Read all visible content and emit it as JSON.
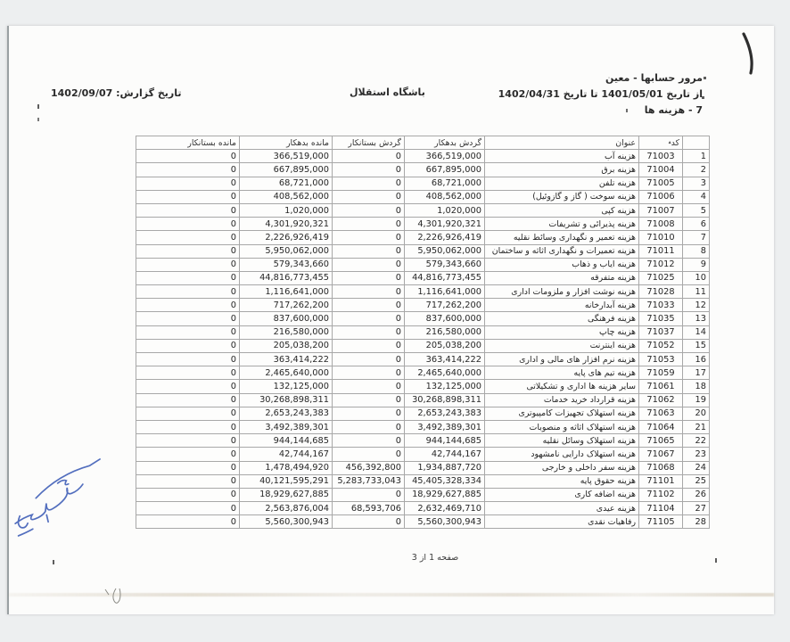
{
  "page": {
    "report_title": "مرور حسابها - معین",
    "date_range": "از تاریخ 1401/05/01 تا تاریخ 1402/04/31",
    "group_title": "7 - هزینه ها",
    "org_name": "باشگاه استقلال",
    "report_date": "تاریخ گزارش: 1402/09/07",
    "footer": "صفحه 1 از 3"
  },
  "table": {
    "headers": [
      "",
      "کد",
      "عنوان",
      "گردش بدهکار",
      "گردش بستانکار",
      "مانده بدهکار",
      "مانده بستانکار"
    ],
    "cell_keys": [
      "n",
      "code",
      "title",
      "dt",
      "ct",
      "db",
      "cb"
    ],
    "sort_icon": "▴",
    "rows": [
      {
        "n": "1",
        "code": "71003",
        "title": "هزینه آب",
        "dt": "366,519,000",
        "ct": "0",
        "db": "366,519,000",
        "cb": "0"
      },
      {
        "n": "2",
        "code": "71004",
        "title": "هزینه برق",
        "dt": "667,895,000",
        "ct": "0",
        "db": "667,895,000",
        "cb": "0"
      },
      {
        "n": "3",
        "code": "71005",
        "title": "هزینه تلفن",
        "dt": "68,721,000",
        "ct": "0",
        "db": "68,721,000",
        "cb": "0"
      },
      {
        "n": "4",
        "code": "71006",
        "title": "هزینه سوخت ( گاز و گازوئیل)",
        "dt": "408,562,000",
        "ct": "0",
        "db": "408,562,000",
        "cb": "0"
      },
      {
        "n": "5",
        "code": "71007",
        "title": "هزینه کپی",
        "dt": "1,020,000",
        "ct": "0",
        "db": "1,020,000",
        "cb": "0"
      },
      {
        "n": "6",
        "code": "71008",
        "title": "هزینه پذیرائی و تشریفات",
        "dt": "4,301,920,321",
        "ct": "0",
        "db": "4,301,920,321",
        "cb": "0"
      },
      {
        "n": "7",
        "code": "71010",
        "title": "هزینه تعمیر و نگهداری وسائط نقلیه",
        "dt": "2,226,926,419",
        "ct": "0",
        "db": "2,226,926,419",
        "cb": "0"
      },
      {
        "n": "8",
        "code": "71011",
        "title": "هزینه تعمیرات و نگهداری اثاثه و ساختمان",
        "dt": "5,950,062,000",
        "ct": "0",
        "db": "5,950,062,000",
        "cb": "0"
      },
      {
        "n": "9",
        "code": "71012",
        "title": "هزینه ایاب و ذهاب",
        "dt": "579,343,660",
        "ct": "0",
        "db": "579,343,660",
        "cb": "0"
      },
      {
        "n": "10",
        "code": "71025",
        "title": "هزینه متفرقه",
        "dt": "44,816,773,455",
        "ct": "0",
        "db": "44,816,773,455",
        "cb": "0"
      },
      {
        "n": "11",
        "code": "71028",
        "title": "هزینه نوشت افزار و ملزومات اداری",
        "dt": "1,116,641,000",
        "ct": "0",
        "db": "1,116,641,000",
        "cb": "0"
      },
      {
        "n": "12",
        "code": "71033",
        "title": "هزینه آبدارخانه",
        "dt": "717,262,200",
        "ct": "0",
        "db": "717,262,200",
        "cb": "0"
      },
      {
        "n": "13",
        "code": "71035",
        "title": "هزینه فرهنگی",
        "dt": "837,600,000",
        "ct": "0",
        "db": "837,600,000",
        "cb": "0"
      },
      {
        "n": "14",
        "code": "71037",
        "title": "هزینه چاپ",
        "dt": "216,580,000",
        "ct": "0",
        "db": "216,580,000",
        "cb": "0"
      },
      {
        "n": "15",
        "code": "71052",
        "title": "هزینه اینترنت",
        "dt": "205,038,200",
        "ct": "0",
        "db": "205,038,200",
        "cb": "0"
      },
      {
        "n": "16",
        "code": "71053",
        "title": "هزینه نرم افزار های مالی و اداری",
        "dt": "363,414,222",
        "ct": "0",
        "db": "363,414,222",
        "cb": "0"
      },
      {
        "n": "17",
        "code": "71059",
        "title": "هزینه تیم های پایه",
        "dt": "2,465,640,000",
        "ct": "0",
        "db": "2,465,640,000",
        "cb": "0"
      },
      {
        "n": "18",
        "code": "71061",
        "title": "سایر هزینه ها اداری و تشکیلاتی",
        "dt": "132,125,000",
        "ct": "0",
        "db": "132,125,000",
        "cb": "0"
      },
      {
        "n": "19",
        "code": "71062",
        "title": "هزینه قرارداد خرید خدمات",
        "dt": "30,268,898,311",
        "ct": "0",
        "db": "30,268,898,311",
        "cb": "0"
      },
      {
        "n": "20",
        "code": "71063",
        "title": "هزینه استهلاک تجهیزات کامپیوتری",
        "dt": "2,653,243,383",
        "ct": "0",
        "db": "2,653,243,383",
        "cb": "0"
      },
      {
        "n": "21",
        "code": "71064",
        "title": "هزینه استهلاک اثاثه و منصوبات",
        "dt": "3,492,389,301",
        "ct": "0",
        "db": "3,492,389,301",
        "cb": "0"
      },
      {
        "n": "22",
        "code": "71065",
        "title": "هزینه استهلاک وسائل نقلیه",
        "dt": "944,144,685",
        "ct": "0",
        "db": "944,144,685",
        "cb": "0"
      },
      {
        "n": "23",
        "code": "71067",
        "title": "هزینه استهلاک دارایی نامشهود",
        "dt": "42,744,167",
        "ct": "0",
        "db": "42,744,167",
        "cb": "0"
      },
      {
        "n": "24",
        "code": "71068",
        "title": "هزینه سفر داخلی و خارجی",
        "dt": "1,934,887,720",
        "ct": "456,392,800",
        "db": "1,478,494,920",
        "cb": "0"
      },
      {
        "n": "25",
        "code": "71101",
        "title": "هزینه حقوق پایه",
        "dt": "45,405,328,334",
        "ct": "5,283,733,043",
        "db": "40,121,595,291",
        "cb": "0"
      },
      {
        "n": "26",
        "code": "71102",
        "title": "هزینه اضافه کاری",
        "dt": "18,929,627,885",
        "ct": "0",
        "db": "18,929,627,885",
        "cb": "0"
      },
      {
        "n": "27",
        "code": "71104",
        "title": "هزینه عیدی",
        "dt": "2,632,469,710",
        "ct": "68,593,706",
        "db": "2,563,876,004",
        "cb": "0"
      },
      {
        "n": "28",
        "code": "71105",
        "title": "رفاهیات نقدی",
        "dt": "5,560,300,943",
        "ct": "0",
        "db": "5,560,300,943",
        "cb": "0"
      }
    ]
  },
  "colors": {
    "ink": "#262626",
    "table_border": "#a8a8a8",
    "signature_blue": "#3b5bb5",
    "paper": "#fcfcfb",
    "background": "#edeff0"
  }
}
